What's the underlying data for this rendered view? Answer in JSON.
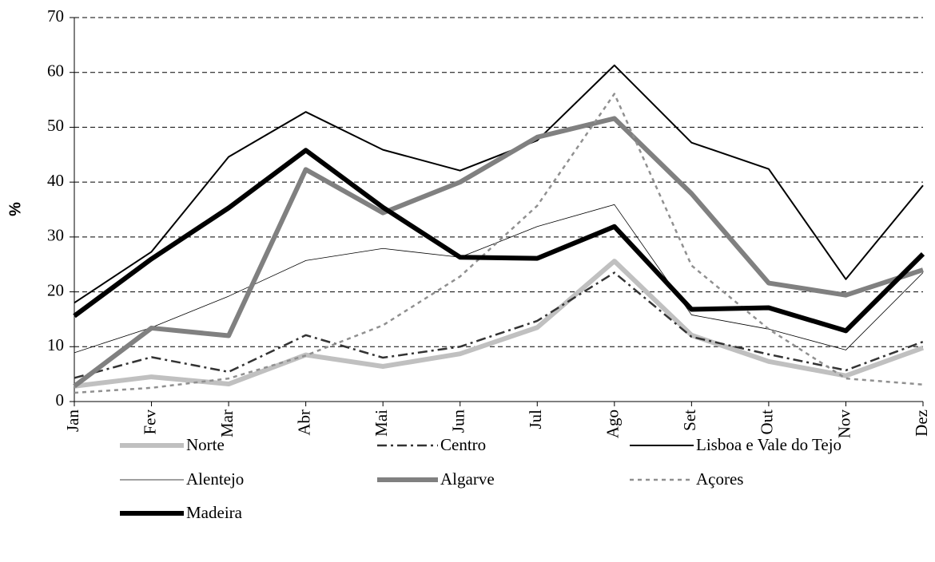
{
  "chart_data": {
    "type": "line",
    "y_label": "%",
    "categories": [
      "Jan",
      "Fev",
      "Mar",
      "Abr",
      "Mai",
      "Jun",
      "Jul",
      "Ago",
      "Set",
      "Out",
      "Nov",
      "Dez"
    ],
    "ylim": [
      0,
      70
    ],
    "yticks": [
      0,
      10,
      20,
      30,
      40,
      50,
      60,
      70
    ],
    "grid": true,
    "series": [
      {
        "name": "Norte",
        "color": "#c0c0c0",
        "width": 6,
        "dash": "none",
        "values": [
          2.8,
          4.5,
          3.2,
          8.5,
          6.4,
          8.7,
          13.5,
          25.6,
          12.1,
          7.3,
          4.7,
          9.8
        ]
      },
      {
        "name": "Centro",
        "color": "#333333",
        "width": 2.5,
        "dash": "12,5,3,5",
        "values": [
          4.3,
          8.1,
          5.4,
          12.1,
          8.0,
          10.0,
          14.7,
          23.5,
          11.8,
          8.6,
          5.7,
          10.9
        ]
      },
      {
        "name": "Lisboa e Vale do Tejo",
        "color": "#000000",
        "width": 2,
        "dash": "none",
        "values": [
          18.0,
          27.3,
          44.6,
          52.8,
          45.9,
          42.1,
          47.6,
          61.3,
          47.2,
          42.4,
          22.3,
          39.4
        ]
      },
      {
        "name": "Alentejo",
        "color": "#000000",
        "width": 0.8,
        "dash": "none",
        "values": [
          8.9,
          13.5,
          19.2,
          25.7,
          27.9,
          26.3,
          31.9,
          35.9,
          15.8,
          13.2,
          9.4,
          23.5
        ]
      },
      {
        "name": "Algarve",
        "color": "#808080",
        "width": 6,
        "dash": "none",
        "values": [
          2.8,
          13.4,
          12.0,
          42.3,
          34.4,
          40.0,
          48.2,
          51.6,
          37.9,
          21.6,
          19.4,
          24.0
        ]
      },
      {
        "name": "Açores",
        "color": "#909090",
        "width": 2.5,
        "dash": "5,5",
        "values": [
          1.6,
          2.5,
          4.2,
          8.4,
          13.9,
          22.8,
          35.7,
          56.1,
          24.8,
          13.2,
          4.2,
          3.1
        ]
      },
      {
        "name": "Madeira",
        "color": "#000000",
        "width": 6,
        "dash": "none",
        "values": [
          15.6,
          26.0,
          35.3,
          45.8,
          35.4,
          26.3,
          26.1,
          31.9,
          16.8,
          17.1,
          12.9,
          26.9
        ]
      }
    ]
  }
}
